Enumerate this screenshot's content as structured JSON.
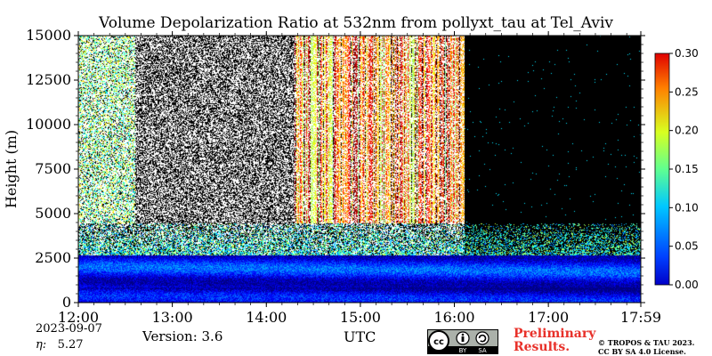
{
  "chart_data": {
    "type": "heatmap",
    "title": "Volume Depolarization Ratio at 532nm from pollyxt_tau at Tel_Aviv",
    "xlabel": "UTC",
    "ylabel": "Height (m)",
    "x_tick_labels": [
      "12:00",
      "13:00",
      "14:00",
      "15:00",
      "16:00",
      "17:00",
      "17:59"
    ],
    "x_range_hours": [
      12.0,
      17.983
    ],
    "y_ticks": [
      0,
      2500,
      5000,
      7500,
      10000,
      12500,
      15000
    ],
    "ylim": [
      0,
      15000
    ],
    "colorbar": {
      "ticks": [
        0.0,
        0.05,
        0.1,
        0.15,
        0.2,
        0.25,
        0.3
      ],
      "tick_labels": [
        "0.00",
        "0.05",
        "0.10",
        "0.15",
        "0.20",
        "0.25",
        "0.30"
      ],
      "range": [
        0.0,
        0.3
      ],
      "colormap": "jet"
    },
    "missing_data_color": "#000000",
    "no_data_start_hour": 16.1,
    "boundary_layer_top_m": 2700,
    "aerosol_layer_top_m": 4500
  },
  "footer": {
    "date": "2023-09-07",
    "eta_label": "η:",
    "eta_value": "5.27",
    "version": "Version: 3.6",
    "preliminary": "Preliminary Results.",
    "copyright_line1": "© TROPOS & TAU 2023.",
    "copyright_line2": "CC BY SA 4.0 License.",
    "license_by": "BY",
    "license_sa": "SA"
  },
  "colors": {
    "preliminary": "#e8312a",
    "no_data": "#000000"
  }
}
